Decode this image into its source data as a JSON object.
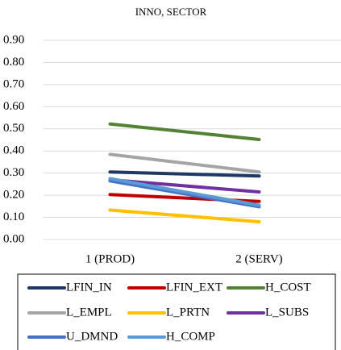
{
  "chart_data": {
    "type": "line",
    "title": "INNO, SECTOR",
    "categories": [
      "1 (PROD)",
      "2 (SERV)"
    ],
    "series": [
      {
        "name": "LFIN_IN",
        "color": "#1f3864",
        "values": [
          0.305,
          0.287
        ]
      },
      {
        "name": "LFIN_EXT",
        "color": "#c00000",
        "values": [
          0.203,
          0.172
        ]
      },
      {
        "name": "H_COST",
        "color": "#548235",
        "values": [
          0.522,
          0.452
        ]
      },
      {
        "name": "L_EMPL",
        "color": "#a5a5a5",
        "values": [
          0.385,
          0.305
        ]
      },
      {
        "name": "L_PRTN",
        "color": "#ffc000",
        "values": [
          0.133,
          0.08
        ]
      },
      {
        "name": "L_SUBS",
        "color": "#7030a0",
        "values": [
          0.27,
          0.215
        ]
      },
      {
        "name": "U_DMND",
        "color": "#4472c4",
        "values": [
          0.265,
          0.148
        ]
      },
      {
        "name": "H_COMP",
        "color": "#5b9bd5",
        "values": [
          0.275,
          0.155
        ]
      }
    ],
    "ylim": [
      0,
      0.9
    ],
    "yticks": [
      {
        "value": 0,
        "label": "0.00"
      },
      {
        "value": 0.1,
        "label": "0.10"
      },
      {
        "value": 0.2,
        "label": "0.20"
      },
      {
        "value": 0.3,
        "label": "0.30"
      },
      {
        "value": 0.4,
        "label": "0.40"
      },
      {
        "value": 0.5,
        "label": "0.50"
      },
      {
        "value": 0.6,
        "label": "0.60"
      },
      {
        "value": 0.7,
        "label": "0.70"
      },
      {
        "value": 0.8,
        "label": "0.80"
      },
      {
        "value": 0.9,
        "label": "0.90"
      }
    ],
    "grid": true,
    "legend": "bottom"
  }
}
